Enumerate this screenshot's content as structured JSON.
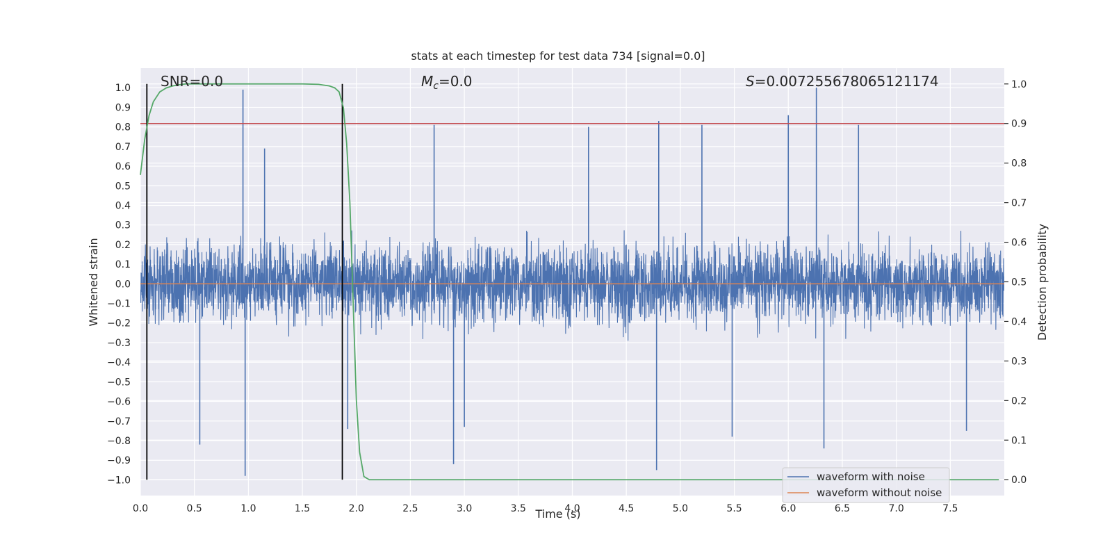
{
  "chart_data": {
    "type": "line",
    "title": "stats at each timestep for test data 734 [signal=0.0]",
    "xlabel": "Time (s)",
    "ylabel": "Whitened strain",
    "y2label": "Detection probability",
    "xlim": [
      0.0,
      8.0
    ],
    "ylim": [
      -1.08,
      1.1
    ],
    "y2lim": [
      -0.04,
      1.04
    ],
    "xticks": [
      0.0,
      0.5,
      1.0,
      1.5,
      2.0,
      2.5,
      3.0,
      3.5,
      4.0,
      4.5,
      5.0,
      5.5,
      6.0,
      6.5,
      7.0,
      7.5
    ],
    "yticks": [
      -1.0,
      -0.9,
      -0.8,
      -0.7,
      -0.6,
      -0.5,
      -0.4,
      -0.3,
      -0.2,
      -0.1,
      0.0,
      0.1,
      0.2,
      0.3,
      0.4,
      0.5,
      0.6,
      0.7,
      0.8,
      0.9,
      1.0
    ],
    "y2ticks": [
      0.0,
      0.1,
      0.2,
      0.3,
      0.4,
      0.5,
      0.6,
      0.7,
      0.8,
      0.9,
      1.0
    ],
    "grid": true,
    "legend_position": "bottom-right",
    "annotations": {
      "snr": "SNR=0.0",
      "mc_symbol": "M",
      "mc_sub": "c",
      "mc_value": "=0.0",
      "s_symbol": "S",
      "s_value": "=0.007255678065121174"
    },
    "series": [
      {
        "name": "waveform with noise",
        "color": "#4c72b0",
        "axis": "left",
        "style": "dense noise in ±0.6 with spikes; peak 1.0 at t≈6.26, min -0.98 at t≈0.97",
        "spikes": [
          [
            0.95,
            0.99
          ],
          [
            0.97,
            -0.98
          ],
          [
            6.26,
            1.0
          ],
          [
            6.0,
            0.86
          ],
          [
            4.8,
            0.83
          ],
          [
            4.78,
            -0.95
          ],
          [
            4.15,
            0.8
          ],
          [
            2.9,
            -0.92
          ],
          [
            0.55,
            -0.82
          ],
          [
            2.72,
            0.81
          ],
          [
            5.2,
            0.81
          ],
          [
            6.65,
            0.81
          ],
          [
            5.48,
            -0.78
          ],
          [
            6.33,
            -0.84
          ],
          [
            1.92,
            -0.74
          ],
          [
            3.0,
            -0.73
          ],
          [
            7.65,
            -0.75
          ],
          [
            1.15,
            0.69
          ]
        ]
      },
      {
        "name": "waveform without noise",
        "color": "#dd8452",
        "axis": "left",
        "values": "constant 0.0"
      },
      {
        "color": "#55a868",
        "axis": "right",
        "x": [
          0.0,
          0.04,
          0.08,
          0.12,
          0.18,
          0.24,
          0.3,
          0.36,
          0.42,
          0.5,
          1.0,
          1.5,
          1.65,
          1.75,
          1.8,
          1.84,
          1.88,
          1.91,
          1.94,
          1.97,
          2.0,
          2.03,
          2.07,
          2.12,
          2.2,
          3.0,
          4.0,
          5.0,
          6.0,
          7.0,
          7.95
        ],
        "y": [
          0.77,
          0.86,
          0.92,
          0.955,
          0.98,
          0.99,
          0.995,
          0.998,
          1.0,
          1.0,
          1.0,
          1.0,
          0.999,
          0.995,
          0.99,
          0.98,
          0.94,
          0.85,
          0.7,
          0.45,
          0.2,
          0.07,
          0.008,
          0.0,
          0.0,
          0.0,
          0.0,
          0.0,
          0.0,
          0.0,
          0.0
        ]
      }
    ],
    "hlines": [
      {
        "axis": "right",
        "value": 0.9,
        "color": "#c44e52"
      }
    ],
    "vlines": [
      {
        "x": 0.06,
        "color": "#000000"
      },
      {
        "x": 1.87,
        "color": "#000000"
      }
    ]
  }
}
